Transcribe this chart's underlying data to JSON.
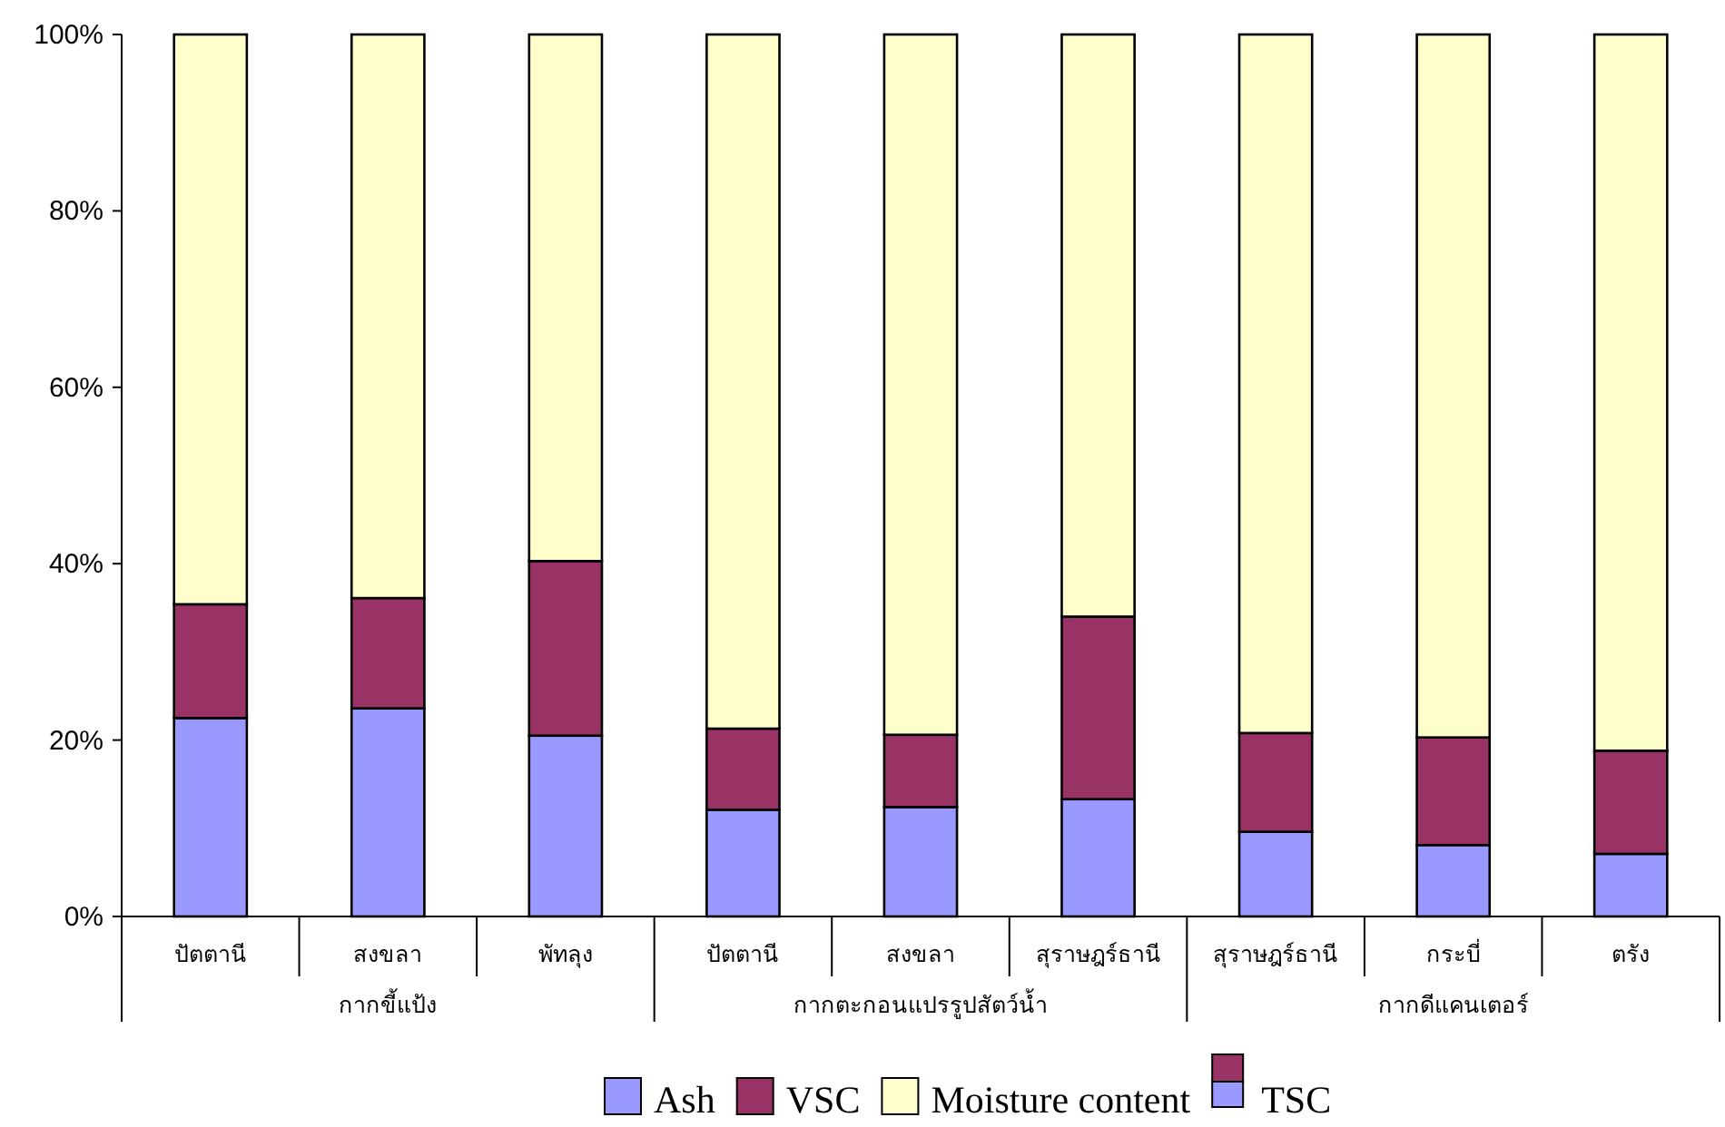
{
  "chart_data": {
    "type": "bar",
    "stacked": true,
    "categories": [
      "ปัตตานี",
      "สงขลา",
      "พัทลุง",
      "ปัตตานี",
      "สงขลา",
      "สุราษฎร์ธานี",
      "สุราษฎร์ธานี",
      "กระบี่",
      "ตรัง"
    ],
    "series": [
      {
        "name": "Ash",
        "color": "#9999ff",
        "values": [
          22.5,
          23.6,
          20.5,
          12.1,
          12.4,
          13.3,
          9.6,
          8.1,
          7.1
        ]
      },
      {
        "name": "VSC",
        "color": "#993366",
        "values": [
          12.9,
          12.5,
          19.8,
          9.2,
          8.2,
          20.7,
          11.2,
          12.2,
          11.7
        ]
      },
      {
        "name": "Moisture content",
        "color": "#ffffcc",
        "values": [
          64.6,
          63.9,
          59.7,
          78.7,
          79.4,
          66.0,
          79.2,
          79.7,
          81.2
        ]
      }
    ],
    "ylim": [
      0,
      100
    ],
    "yticks": [
      {
        "value": 0,
        "label": "0%"
      },
      {
        "value": 20,
        "label": "20%"
      },
      {
        "value": 40,
        "label": "40%"
      },
      {
        "value": 60,
        "label": "60%"
      },
      {
        "value": 80,
        "label": "80%"
      },
      {
        "value": 100,
        "label": "100%"
      }
    ],
    "annotations": [
      "กากขี้แป้ง",
      "กากตะกอนแปรรูปสัตว์น้ำ",
      "กากดีแคนเตอร์",
      "TSC"
    ],
    "legend": "bottom",
    "grid": false
  }
}
